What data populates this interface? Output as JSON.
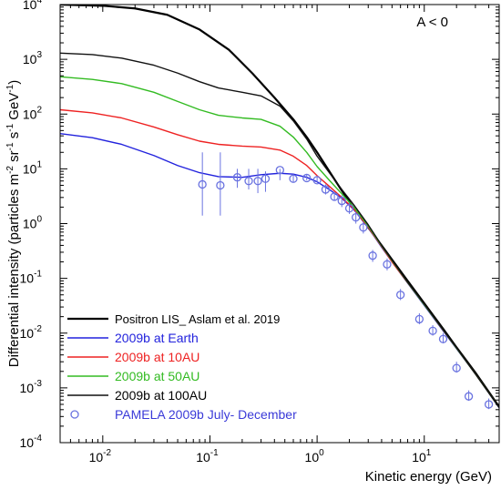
{
  "chart_data": {
    "type": "line",
    "title": "",
    "annotation": "A < 0",
    "xlabel": "Kinetic energy (GeV)",
    "ylabel": "Differential intensity (particles m",
    "ylabel_parts": [
      {
        "t": "Differential intensity (particles m",
        "sup": false
      },
      {
        "t": "-2",
        "sup": true
      },
      {
        "t": " sr",
        "sup": false
      },
      {
        "t": "-1",
        "sup": true
      },
      {
        "t": " s",
        "sup": false
      },
      {
        "t": "-1",
        "sup": true
      },
      {
        "t": " GeV",
        "sup": false
      },
      {
        "t": "-1",
        "sup": true
      },
      {
        "t": ")",
        "sup": false
      }
    ],
    "x_scale": "log",
    "y_scale": "log",
    "xlim": [
      0.004,
      50
    ],
    "ylim": [
      0.0001,
      10000
    ],
    "x_ticks": [
      {
        "value": 0.01,
        "label": "10",
        "exp": "-2"
      },
      {
        "value": 0.1,
        "label": "10",
        "exp": "-1"
      },
      {
        "value": 1,
        "label": "10",
        "exp": "0"
      },
      {
        "value": 10,
        "label": "10",
        "exp": "1"
      }
    ],
    "y_ticks": [
      {
        "value": 0.0001,
        "label": "10",
        "exp": "-4"
      },
      {
        "value": 0.001,
        "label": "10",
        "exp": "-3"
      },
      {
        "value": 0.01,
        "label": "10",
        "exp": "-2"
      },
      {
        "value": 0.1,
        "label": "10",
        "exp": "-1"
      },
      {
        "value": 1,
        "label": "10",
        "exp": "0"
      },
      {
        "value": 10,
        "label": "10",
        "exp": "1"
      },
      {
        "value": 100,
        "label": "10",
        "exp": "2"
      },
      {
        "value": 1000,
        "label": "10",
        "exp": "3"
      },
      {
        "value": 10000,
        "label": "10",
        "exp": "4"
      }
    ],
    "grid": false,
    "legend_position": "bottom-left",
    "series": [
      {
        "name": "Positron LIS_ Aslam et al. 2019",
        "color": "#000000",
        "width": 2.2,
        "x": [
          0.004,
          0.01,
          0.02,
          0.04,
          0.08,
          0.15,
          0.25,
          0.4,
          0.6,
          0.8,
          1.0,
          1.3,
          1.7,
          2.2,
          3,
          4,
          5,
          7,
          10,
          15,
          20,
          30,
          50
        ],
        "y": [
          10000,
          9500,
          8500,
          6500,
          3500,
          1500,
          550,
          200,
          80,
          38,
          20,
          9,
          4,
          1.9,
          0.85,
          0.4,
          0.22,
          0.09,
          0.035,
          0.012,
          0.0055,
          0.0019,
          0.00045
        ]
      },
      {
        "name": "2009b at Earth",
        "color": "#2222dd",
        "width": 1.4,
        "x": [
          0.004,
          0.008,
          0.015,
          0.03,
          0.05,
          0.08,
          0.12,
          0.2,
          0.3,
          0.45,
          0.6,
          0.8,
          1.0,
          1.3,
          1.7,
          2.2,
          3,
          4,
          5,
          7,
          10,
          15,
          20,
          30,
          50
        ],
        "y": [
          44,
          37,
          28,
          17.5,
          11.5,
          8.5,
          7.2,
          7.0,
          7.8,
          8.3,
          8.0,
          7.0,
          5.8,
          4.2,
          2.9,
          1.8,
          0.85,
          0.37,
          0.2,
          0.082,
          0.032,
          0.011,
          0.0052,
          0.0018,
          0.00043
        ]
      },
      {
        "name": "2009b at 10AU",
        "color": "#ee2222",
        "width": 1.4,
        "x": [
          0.004,
          0.008,
          0.015,
          0.03,
          0.05,
          0.08,
          0.12,
          0.2,
          0.3,
          0.45,
          0.6,
          0.8,
          1.0,
          1.3,
          1.7,
          2.2,
          3,
          4,
          5,
          7,
          10,
          15,
          20,
          30,
          50
        ],
        "y": [
          120,
          105,
          85,
          58,
          42,
          32,
          28,
          26,
          25,
          22,
          17,
          11.5,
          7.5,
          4.8,
          3.0,
          1.85,
          0.86,
          0.38,
          0.2,
          0.083,
          0.033,
          0.0113,
          0.0053,
          0.0018,
          0.00044
        ]
      },
      {
        "name": "2009b at 50AU",
        "color": "#33bb22",
        "width": 1.4,
        "x": [
          0.004,
          0.008,
          0.015,
          0.03,
          0.05,
          0.08,
          0.12,
          0.2,
          0.3,
          0.45,
          0.6,
          0.8,
          1.0,
          1.3,
          1.7,
          2.2,
          3,
          4,
          5,
          7,
          10,
          15,
          20,
          30,
          50
        ],
        "y": [
          480,
          430,
          360,
          250,
          170,
          120,
          95,
          85,
          80,
          60,
          38,
          20,
          11,
          6.2,
          3.5,
          2.0,
          0.9,
          0.39,
          0.21,
          0.084,
          0.033,
          0.0114,
          0.0053,
          0.0018,
          0.00044
        ]
      },
      {
        "name": "2009b at 100AU",
        "color": "#111111",
        "width": 1.4,
        "x": [
          0.004,
          0.008,
          0.015,
          0.03,
          0.05,
          0.08,
          0.12,
          0.2,
          0.3,
          0.45,
          0.6,
          0.8,
          1.0,
          1.3,
          1.7,
          2.2,
          3,
          4,
          5,
          7,
          10,
          15,
          20,
          30,
          50
        ],
        "y": [
          1300,
          1220,
          1050,
          780,
          560,
          390,
          300,
          250,
          215,
          140,
          75,
          35,
          17,
          8.5,
          4.2,
          2.2,
          0.95,
          0.4,
          0.215,
          0.085,
          0.034,
          0.0115,
          0.0054,
          0.0018,
          0.00044
        ]
      }
    ],
    "points": {
      "name": "PAMELA 2009b July- December",
      "color": "#6a73e0",
      "x": [
        0.085,
        0.125,
        0.18,
        0.23,
        0.28,
        0.33,
        0.45,
        0.6,
        0.8,
        1.0,
        1.2,
        1.45,
        1.7,
        2.0,
        2.3,
        2.7,
        3.3,
        4.5,
        6,
        9,
        12,
        15,
        20,
        26,
        40
      ],
      "y": [
        5.2,
        5.0,
        7.0,
        6.0,
        6.0,
        6.6,
        9.5,
        6.6,
        6.8,
        6.2,
        4.2,
        3.1,
        2.6,
        1.9,
        1.3,
        0.85,
        0.26,
        0.18,
        0.05,
        0.018,
        0.011,
        0.0078,
        0.0023,
        0.0007,
        0.0005
      ],
      "err_lo": [
        1.4,
        1.4,
        4.5,
        4.2,
        3.6,
        3.8,
        6.2,
        5.6,
        6.2,
        5.7,
        3.4,
        2.6,
        2.0,
        1.5,
        1.0,
        0.66,
        0.2,
        0.14,
        0.04,
        0.0145,
        0.009,
        0.0065,
        0.0019,
        0.00058,
        0.00041
      ],
      "err_hi": [
        20,
        20,
        10,
        10,
        10,
        9,
        10,
        8,
        8,
        7.5,
        5.2,
        3.8,
        3.3,
        2.4,
        1.65,
        1.08,
        0.33,
        0.23,
        0.064,
        0.023,
        0.014,
        0.01,
        0.003,
        0.0009,
        0.00064
      ]
    }
  }
}
